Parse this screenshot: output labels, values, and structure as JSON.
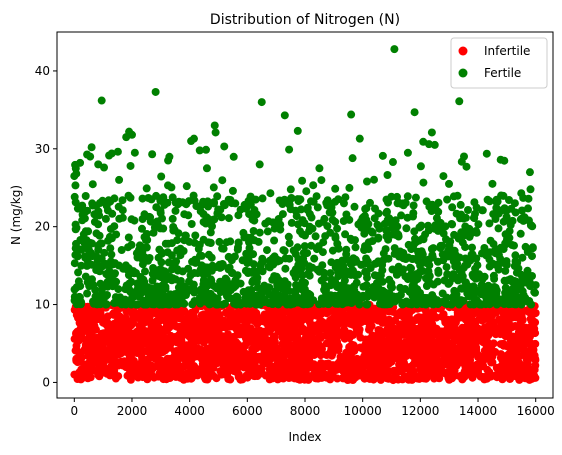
{
  "chart_data": {
    "type": "scatter",
    "title": "Distribution of Nitrogen (N)",
    "xlabel": "Index",
    "ylabel": "N (mg/kg)",
    "xlim": [
      -600,
      16600
    ],
    "ylim": [
      -2,
      45
    ],
    "xticks": [
      0,
      2000,
      4000,
      6000,
      8000,
      10000,
      12000,
      14000,
      16000
    ],
    "yticks": [
      0,
      10,
      20,
      30,
      40
    ],
    "grid": false,
    "legend_position": "top-right",
    "series": [
      {
        "name": "Infertile",
        "color": "#ff0000",
        "x_range": [
          0,
          16000
        ],
        "y_range": [
          0.3,
          10
        ],
        "points": [
          [
            100,
            6.5
          ],
          [
            300,
            1.2
          ],
          [
            520,
            8.9
          ],
          [
            800,
            3.4
          ],
          [
            1100,
            9.6
          ],
          [
            1400,
            0.8
          ],
          [
            1700,
            5.5
          ],
          [
            2000,
            7.7
          ],
          [
            2300,
            2.1
          ],
          [
            2600,
            9.2
          ],
          [
            2900,
            4.6
          ],
          [
            3200,
            0.6
          ],
          [
            3500,
            8.3
          ],
          [
            3800,
            6.1
          ],
          [
            4100,
            1.9
          ],
          [
            4400,
            9.8
          ],
          [
            4700,
            3.7
          ],
          [
            5000,
            7.1
          ],
          [
            5300,
            0.9
          ],
          [
            5600,
            5.2
          ],
          [
            5900,
            9.4
          ],
          [
            6200,
            2.6
          ],
          [
            6500,
            8.0
          ],
          [
            6800,
            4.2
          ],
          [
            7100,
            1.4
          ],
          [
            7400,
            9.7
          ],
          [
            7700,
            6.6
          ],
          [
            8000,
            3.0
          ],
          [
            8300,
            8.7
          ],
          [
            8600,
            0.7
          ],
          [
            8900,
            5.9
          ],
          [
            9200,
            9.1
          ],
          [
            9500,
            2.3
          ],
          [
            9800,
            7.4
          ],
          [
            10100,
            4.9
          ],
          [
            10400,
            1.1
          ],
          [
            10700,
            9.5
          ],
          [
            11000,
            6.3
          ],
          [
            11300,
            3.3
          ],
          [
            11600,
            8.5
          ],
          [
            11900,
            0.5
          ],
          [
            12200,
            9.9
          ],
          [
            12500,
            5.1
          ],
          [
            12800,
            2.8
          ],
          [
            13100,
            7.9
          ],
          [
            13400,
            4.4
          ],
          [
            13700,
            9.3
          ],
          [
            14000,
            1.6
          ],
          [
            14300,
            6.8
          ],
          [
            14600,
            3.9
          ],
          [
            14900,
            9.0
          ],
          [
            15200,
            0.9
          ],
          [
            15500,
            7.2
          ],
          [
            15800,
            4.1
          ],
          [
            15950,
            6.9
          ]
        ]
      },
      {
        "name": "Fertile",
        "color": "#008000",
        "x_range": [
          0,
          16000
        ],
        "y_range": [
          10,
          43
        ],
        "points": [
          [
            0,
            26.5
          ],
          [
            40,
            25.3
          ],
          [
            60,
            17.8
          ],
          [
            100,
            10.3
          ],
          [
            200,
            28.2
          ],
          [
            300,
            22.2
          ],
          [
            550,
            29.0
          ],
          [
            600,
            30.2
          ],
          [
            830,
            28.0
          ],
          [
            950,
            36.2
          ],
          [
            1030,
            27.6
          ],
          [
            1300,
            29.4
          ],
          [
            1450,
            19.0
          ],
          [
            1800,
            31.5
          ],
          [
            1900,
            32.2
          ],
          [
            1950,
            27.8
          ],
          [
            2000,
            31.8
          ],
          [
            2100,
            29.5
          ],
          [
            2700,
            29.3
          ],
          [
            2820,
            37.3
          ],
          [
            3250,
            25.3
          ],
          [
            3900,
            25.2
          ],
          [
            4050,
            31.0
          ],
          [
            4150,
            31.3
          ],
          [
            4350,
            29.8
          ],
          [
            4600,
            27.5
          ],
          [
            4870,
            33.0
          ],
          [
            4900,
            32.1
          ],
          [
            5200,
            30.3
          ],
          [
            5500,
            24.6
          ],
          [
            6500,
            36.0
          ],
          [
            6800,
            24.3
          ],
          [
            7300,
            34.3
          ],
          [
            7750,
            32.3
          ],
          [
            7900,
            25.9
          ],
          [
            8300,
            23.2
          ],
          [
            8500,
            27.5
          ],
          [
            8950,
            21.8
          ],
          [
            9350,
            23.0
          ],
          [
            9600,
            34.4
          ],
          [
            9650,
            28.8
          ],
          [
            9900,
            31.3
          ],
          [
            10150,
            25.8
          ],
          [
            10550,
            21.7
          ],
          [
            10700,
            29.1
          ],
          [
            11050,
            28.3
          ],
          [
            11100,
            42.8
          ],
          [
            11400,
            23.0
          ],
          [
            11800,
            34.7
          ],
          [
            12100,
            30.9
          ],
          [
            12300,
            30.6
          ],
          [
            12400,
            32.1
          ],
          [
            12500,
            30.5
          ],
          [
            12800,
            26.5
          ],
          [
            13350,
            36.1
          ],
          [
            13600,
            27.7
          ],
          [
            14500,
            25.5
          ],
          [
            14800,
            24.0
          ],
          [
            15150,
            22.3
          ],
          [
            15500,
            24.3
          ],
          [
            15800,
            27.0
          ],
          [
            15950,
            11.6
          ],
          [
            16000,
            12.5
          ]
        ]
      }
    ]
  }
}
